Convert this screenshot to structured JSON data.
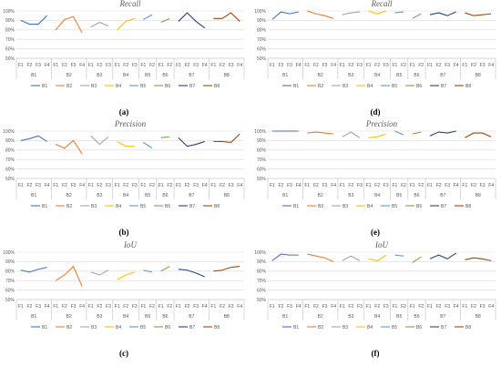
{
  "legend": [
    {
      "name": "B1",
      "color": "#4472C4"
    },
    {
      "name": "B2",
      "color": "#ED7D31"
    },
    {
      "name": "B3",
      "color": "#A5A5A5"
    },
    {
      "name": "B4",
      "color": "#FFC000"
    },
    {
      "name": "B5",
      "color": "#5B9BD5"
    },
    {
      "name": "B6",
      "color": "#70AD47"
    },
    {
      "name": "B7",
      "color": "#264478"
    },
    {
      "name": "B8",
      "color": "#9E480E"
    }
  ],
  "chart_data": [
    {
      "type": "line",
      "panel_label": "(a)",
      "title": "Recall",
      "yticks": [
        "50%",
        "60%",
        "70%",
        "80%",
        "90%",
        "100%"
      ],
      "ylim": [
        50,
        100
      ],
      "groups": [
        {
          "name": "B1",
          "x": [
            "F1",
            "F2",
            "F3",
            "F4"
          ],
          "values": [
            90,
            86,
            86,
            95
          ]
        },
        {
          "name": "B2",
          "x": [
            "F1",
            "F2",
            "F3",
            "F4"
          ],
          "values": [
            80,
            91,
            94,
            77
          ]
        },
        {
          "name": "B3",
          "x": [
            "F1",
            "F2",
            "F3"
          ],
          "values": [
            83,
            88,
            84
          ]
        },
        {
          "name": "B4",
          "x": [
            "F1",
            "F2",
            "F3"
          ],
          "values": [
            80,
            89,
            92
          ]
        },
        {
          "name": "B5",
          "x": [
            "F1",
            "F2"
          ],
          "values": [
            91,
            96
          ]
        },
        {
          "name": "B6",
          "x": [
            "F1",
            "F2"
          ],
          "values": [
            88,
            92
          ]
        },
        {
          "name": "B7",
          "x": [
            "F1",
            "F2",
            "F3",
            "F4"
          ],
          "values": [
            89,
            98,
            89,
            82
          ]
        },
        {
          "name": "B8",
          "x": [
            "F1",
            "F2",
            "F3",
            "F4"
          ],
          "values": [
            92,
            92,
            98,
            89
          ]
        }
      ]
    },
    {
      "type": "line",
      "panel_label": "(d)",
      "title": "Recall",
      "yticks": [
        "50%",
        "60%",
        "70%",
        "80%",
        "90%",
        "100%"
      ],
      "ylim": [
        50,
        100
      ],
      "groups": [
        {
          "name": "B1",
          "x": [
            "F1",
            "F2",
            "F3",
            "F4"
          ],
          "values": [
            91,
            99,
            97,
            99
          ]
        },
        {
          "name": "B2",
          "x": [
            "F1",
            "F2",
            "F3",
            "F4"
          ],
          "values": [
            100,
            97,
            95,
            92
          ]
        },
        {
          "name": "B3",
          "x": [
            "F1",
            "F2",
            "F3"
          ],
          "values": [
            96,
            98,
            99
          ]
        },
        {
          "name": "B4",
          "x": [
            "F1",
            "F2",
            "F3"
          ],
          "values": [
            100,
            97,
            100
          ]
        },
        {
          "name": "B5",
          "x": [
            "F1",
            "F2"
          ],
          "values": [
            98,
            99
          ]
        },
        {
          "name": "B6",
          "x": [
            "F1",
            "F2"
          ],
          "values": [
            92,
            97
          ]
        },
        {
          "name": "B7",
          "x": [
            "F1",
            "F2",
            "F3",
            "F4"
          ],
          "values": [
            96,
            98,
            95,
            99
          ]
        },
        {
          "name": "B8",
          "x": [
            "F1",
            "F2",
            "F3",
            "F4"
          ],
          "values": [
            98,
            95,
            96,
            97
          ]
        }
      ]
    },
    {
      "type": "line",
      "panel_label": "(b)",
      "title": "Precision",
      "yticks": [
        "50%",
        "60%",
        "70%",
        "80%",
        "90%",
        "100%"
      ],
      "ylim": [
        50,
        100
      ],
      "groups": [
        {
          "name": "B1",
          "x": [
            "F1",
            "F2",
            "F3",
            "F4"
          ],
          "values": [
            90,
            92,
            95,
            89
          ]
        },
        {
          "name": "B2",
          "x": [
            "F1",
            "F2",
            "F3",
            "F4"
          ],
          "values": [
            86,
            82,
            90,
            76
          ]
        },
        {
          "name": "B3",
          "x": [
            "F1",
            "F2",
            "F3"
          ],
          "values": [
            95,
            86,
            94
          ]
        },
        {
          "name": "B4",
          "x": [
            "F1",
            "F2",
            "F3"
          ],
          "values": [
            89,
            84,
            84
          ]
        },
        {
          "name": "B5",
          "x": [
            "F1",
            "F2"
          ],
          "values": [
            88,
            82
          ]
        },
        {
          "name": "B6",
          "x": [
            "F1",
            "F2"
          ],
          "values": [
            93,
            94
          ]
        },
        {
          "name": "B7",
          "x": [
            "F1",
            "F2",
            "F3",
            "F4"
          ],
          "values": [
            93,
            84,
            86,
            89
          ]
        },
        {
          "name": "B8",
          "x": [
            "F1",
            "F2",
            "F3",
            "F4"
          ],
          "values": [
            89,
            89,
            88,
            97
          ]
        }
      ]
    },
    {
      "type": "line",
      "panel_label": "(e)",
      "title": "Precision",
      "yticks": [
        "50%",
        "60%",
        "70%",
        "80%",
        "90%",
        "100%"
      ],
      "ylim": [
        50,
        100
      ],
      "groups": [
        {
          "name": "B1",
          "x": [
            "F1",
            "F2",
            "F3",
            "F4"
          ],
          "values": [
            100,
            100,
            100,
            100
          ]
        },
        {
          "name": "B2",
          "x": [
            "F1",
            "F2",
            "F3",
            "F4"
          ],
          "values": [
            98,
            99,
            98,
            97
          ]
        },
        {
          "name": "B3",
          "x": [
            "F1",
            "F2",
            "F3"
          ],
          "values": [
            94,
            99,
            93
          ]
        },
        {
          "name": "B4",
          "x": [
            "F1",
            "F2",
            "F3"
          ],
          "values": [
            93,
            94,
            97
          ]
        },
        {
          "name": "B5",
          "x": [
            "F1",
            "F2"
          ],
          "values": [
            100,
            96
          ]
        },
        {
          "name": "B6",
          "x": [
            "F1",
            "F2"
          ],
          "values": [
            97,
            99
          ]
        },
        {
          "name": "B7",
          "x": [
            "F1",
            "F2",
            "F3",
            "F4"
          ],
          "values": [
            95,
            99,
            98,
            100
          ]
        },
        {
          "name": "B8",
          "x": [
            "F1",
            "F2",
            "F3",
            "F4"
          ],
          "values": [
            93,
            98,
            98,
            94
          ]
        }
      ]
    },
    {
      "type": "line",
      "panel_label": "(c)",
      "title": "IoU",
      "yticks": [
        "50%",
        "60%",
        "70%",
        "80%",
        "90%",
        "100%"
      ],
      "ylim": [
        50,
        100
      ],
      "groups": [
        {
          "name": "B1",
          "x": [
            "F1",
            "F2",
            "F3",
            "F4"
          ],
          "values": [
            81,
            79,
            82,
            84
          ]
        },
        {
          "name": "B2",
          "x": [
            "F1",
            "F2",
            "F3",
            "F4"
          ],
          "values": [
            70,
            76,
            85,
            64
          ]
        },
        {
          "name": "B3",
          "x": [
            "F1",
            "F2",
            "F3"
          ],
          "values": [
            79,
            76,
            81
          ]
        },
        {
          "name": "B4",
          "x": [
            "F1",
            "F2",
            "F3"
          ],
          "values": [
            71,
            76,
            79
          ]
        },
        {
          "name": "B5",
          "x": [
            "F1",
            "F2"
          ],
          "values": [
            81,
            79
          ]
        },
        {
          "name": "B6",
          "x": [
            "F1",
            "F2"
          ],
          "values": [
            80,
            85
          ]
        },
        {
          "name": "B7",
          "x": [
            "F1",
            "F2",
            "F3",
            "F4"
          ],
          "values": [
            82,
            81,
            78,
            74
          ]
        },
        {
          "name": "B8",
          "x": [
            "F1",
            "F2",
            "F3",
            "F4"
          ],
          "values": [
            80,
            81,
            84,
            85
          ]
        }
      ]
    },
    {
      "type": "line",
      "panel_label": "(f)",
      "title": "IoU",
      "yticks": [
        "50%",
        "60%",
        "70%",
        "80%",
        "90%",
        "100%"
      ],
      "ylim": [
        50,
        100
      ],
      "groups": [
        {
          "name": "B1",
          "x": [
            "F1",
            "F2",
            "F3",
            "F4"
          ],
          "values": [
            91,
            98,
            97,
            97
          ]
        },
        {
          "name": "B2",
          "x": [
            "F1",
            "F2",
            "F3",
            "F4"
          ],
          "values": [
            98,
            96,
            94,
            90
          ]
        },
        {
          "name": "B3",
          "x": [
            "F1",
            "F2",
            "F3"
          ],
          "values": [
            91,
            96,
            91
          ]
        },
        {
          "name": "B4",
          "x": [
            "F1",
            "F2",
            "F3"
          ],
          "values": [
            93,
            91,
            97
          ]
        },
        {
          "name": "B5",
          "x": [
            "F1",
            "F2"
          ],
          "values": [
            97,
            96
          ]
        },
        {
          "name": "B6",
          "x": [
            "F1",
            "F2"
          ],
          "values": [
            89,
            95
          ]
        },
        {
          "name": "B7",
          "x": [
            "F1",
            "F2",
            "F3",
            "F4"
          ],
          "values": [
            93,
            97,
            93,
            99
          ]
        },
        {
          "name": "B8",
          "x": [
            "F1",
            "F2",
            "F3",
            "F4"
          ],
          "values": [
            92,
            94,
            93,
            91
          ]
        }
      ]
    }
  ]
}
